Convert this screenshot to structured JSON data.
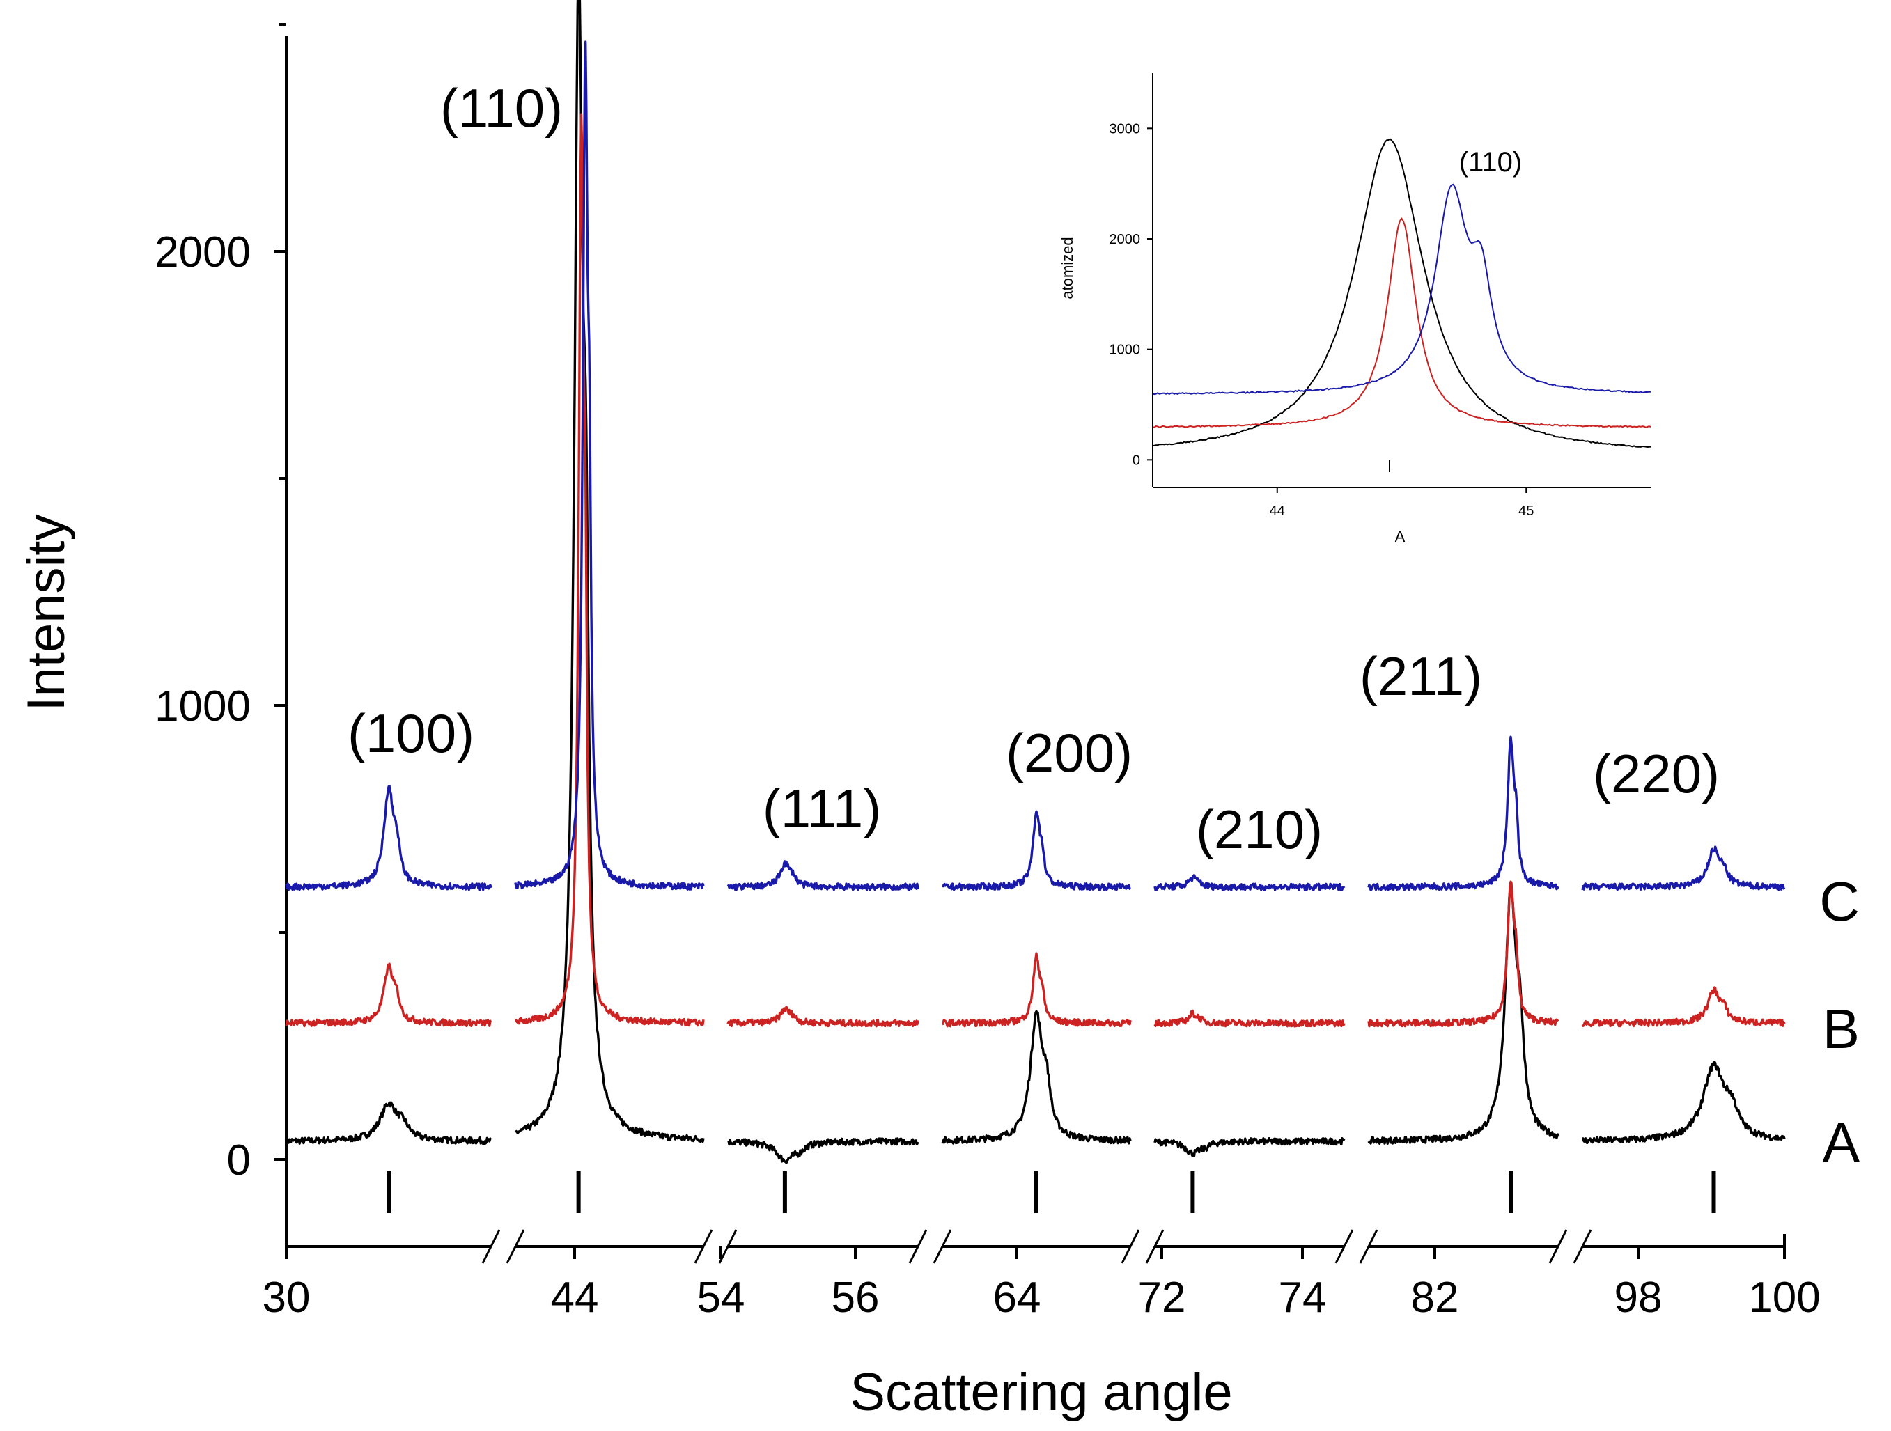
{
  "chart_data": {
    "type": "line",
    "title": "",
    "xlabel": "Scattering angle",
    "ylabel": "Intensity",
    "y_ticks": [
      0,
      1000,
      2000
    ],
    "y_minor_ticks": [
      500,
      1500,
      2500
    ],
    "ylim": [
      -150,
      2500
    ],
    "x_tick_labels": [
      "30",
      "44",
      "54",
      "56",
      "64",
      "72",
      "74",
      "82",
      "98",
      "100"
    ],
    "segments": [
      {
        "range": [
          30,
          40
        ],
        "peaks": [
          {
            "hkl": "(100)",
            "angle": 35
          }
        ]
      },
      {
        "range": [
          40,
          54
        ],
        "peaks": [
          {
            "hkl": "(110)",
            "angle": 44.7
          }
        ]
      },
      {
        "range": [
          54,
          58
        ],
        "peaks": [
          {
            "hkl": "(111)",
            "angle": 55.2
          }
        ]
      },
      {
        "range": [
          58,
          72
        ],
        "peaks": [
          {
            "hkl": "(200)",
            "angle": 65
          }
        ]
      },
      {
        "range": [
          72,
          76
        ],
        "peaks": [
          {
            "hkl": "(210)",
            "angle": 72.8
          }
        ]
      },
      {
        "range": [
          76,
          84
        ],
        "peaks": [
          {
            "hkl": "(211)",
            "angle": 82
          }
        ]
      },
      {
        "range": [
          96,
          100
        ],
        "peaks": [
          {
            "hkl": "(220)",
            "angle": 98.6
          }
        ]
      }
    ],
    "reference_markers": [
      35,
      44.7,
      55.2,
      65,
      72.8,
      82,
      98.6
    ],
    "series": [
      {
        "name": "A",
        "color": "#000000",
        "baseline": 40,
        "peak_heights": [
          120,
          2500,
          0,
          310,
          15,
          570,
          200
        ],
        "peak_offsets": [
          0,
          0,
          0,
          0,
          0,
          0,
          0
        ]
      },
      {
        "name": "B",
        "color": "#cc2222",
        "baseline": 300,
        "peak_heights": [
          420,
          2200,
          330,
          440,
          320,
          600,
          370
        ],
        "peak_offsets": [
          0,
          0.2,
          0,
          0,
          0,
          0,
          0
        ]
      },
      {
        "name": "C",
        "color": "#1a1aaa",
        "baseline": 600,
        "peak_heights": [
          810,
          2370,
          650,
          760,
          620,
          910,
          680
        ],
        "peak_offsets": [
          0,
          0.5,
          0,
          0,
          0,
          0,
          0
        ]
      }
    ],
    "inset": {
      "type": "line",
      "xlabel": "A",
      "ylabel": "atomized",
      "y_ticks": [
        0,
        1000,
        2000,
        3000
      ],
      "x_ticks": [
        44,
        45
      ],
      "xlim": [
        43.5,
        45.5
      ],
      "ylim": [
        -250,
        3500
      ],
      "annotation": "(110)",
      "series": [
        {
          "name": "A",
          "color": "#000000",
          "baseline": 40,
          "peak_angle": 44.45,
          "peak_height": 2900
        },
        {
          "name": "B",
          "color": "#cc2222",
          "baseline": 290,
          "peak_angle": 44.5,
          "peak_height": 2180
        },
        {
          "name": "C",
          "color": "#1a1aaa",
          "baseline": 590,
          "peak_angle": 44.7,
          "peak_height": 2370
        }
      ]
    }
  }
}
